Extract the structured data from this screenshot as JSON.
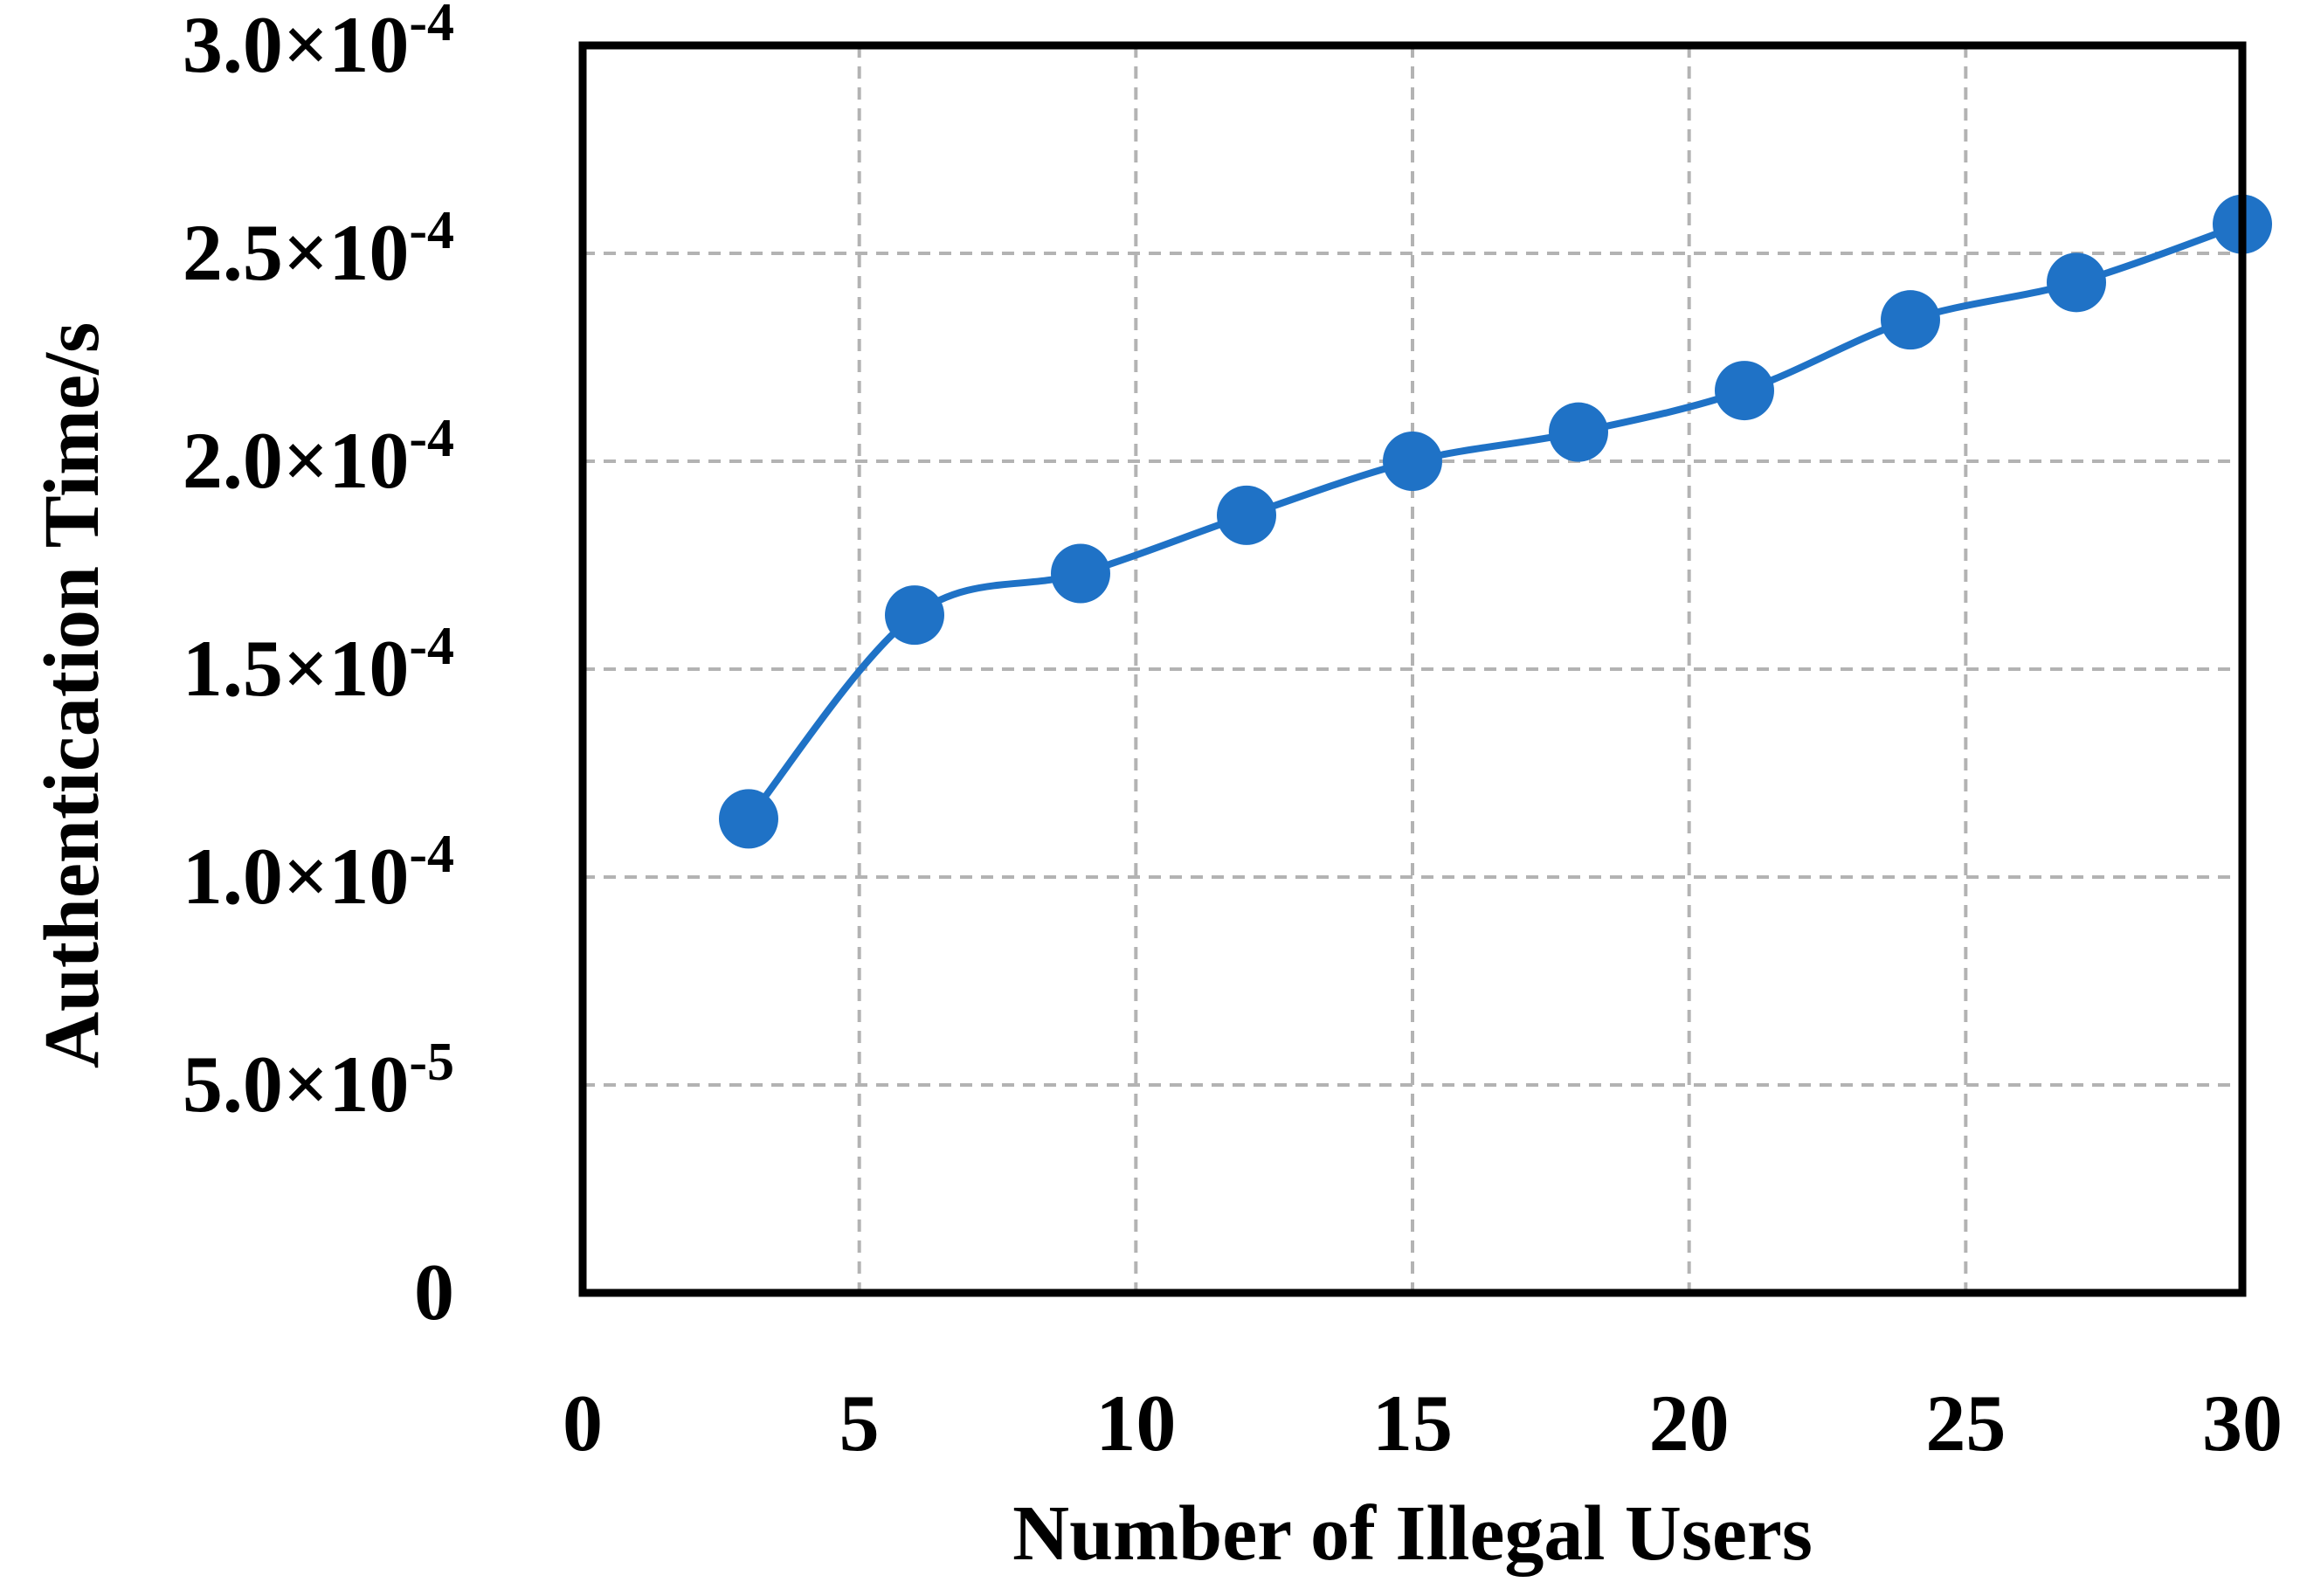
{
  "chart_data": {
    "type": "line",
    "xlabel": "Number of Illegal Users",
    "ylabel": "Authentication Time/s",
    "xlim": [
      0,
      30
    ],
    "ylim": [
      0,
      0.0003
    ],
    "x_ticks": [
      0,
      5,
      10,
      15,
      20,
      25,
      30
    ],
    "x_tick_labels": [
      "0",
      "5",
      "10",
      "15",
      "20",
      "25",
      "30"
    ],
    "y_ticks": [
      0,
      5e-05,
      0.0001,
      0.00015,
      0.0002,
      0.00025,
      0.0003
    ],
    "y_tick_labels": [
      {
        "mantissa": "0",
        "exponent": ""
      },
      {
        "mantissa": "5.0×10",
        "exponent": "-5"
      },
      {
        "mantissa": "1.0×10",
        "exponent": "-4"
      },
      {
        "mantissa": "1.5×10",
        "exponent": "-4"
      },
      {
        "mantissa": "2.0×10",
        "exponent": "-4"
      },
      {
        "mantissa": "2.5×10",
        "exponent": "-4"
      },
      {
        "mantissa": "3.0×10",
        "exponent": "-4"
      }
    ],
    "grid": true,
    "smooth": true,
    "series": [
      {
        "color": "#1f72c6",
        "marker": "circle",
        "x": [
          3,
          6,
          9,
          12,
          15,
          18,
          21,
          24,
          27,
          30
        ],
        "y": [
          0.000114,
          0.000163,
          0.000173,
          0.000187,
          0.0002,
          0.000207,
          0.000217,
          0.000234,
          0.000243,
          0.000257
        ]
      }
    ]
  }
}
